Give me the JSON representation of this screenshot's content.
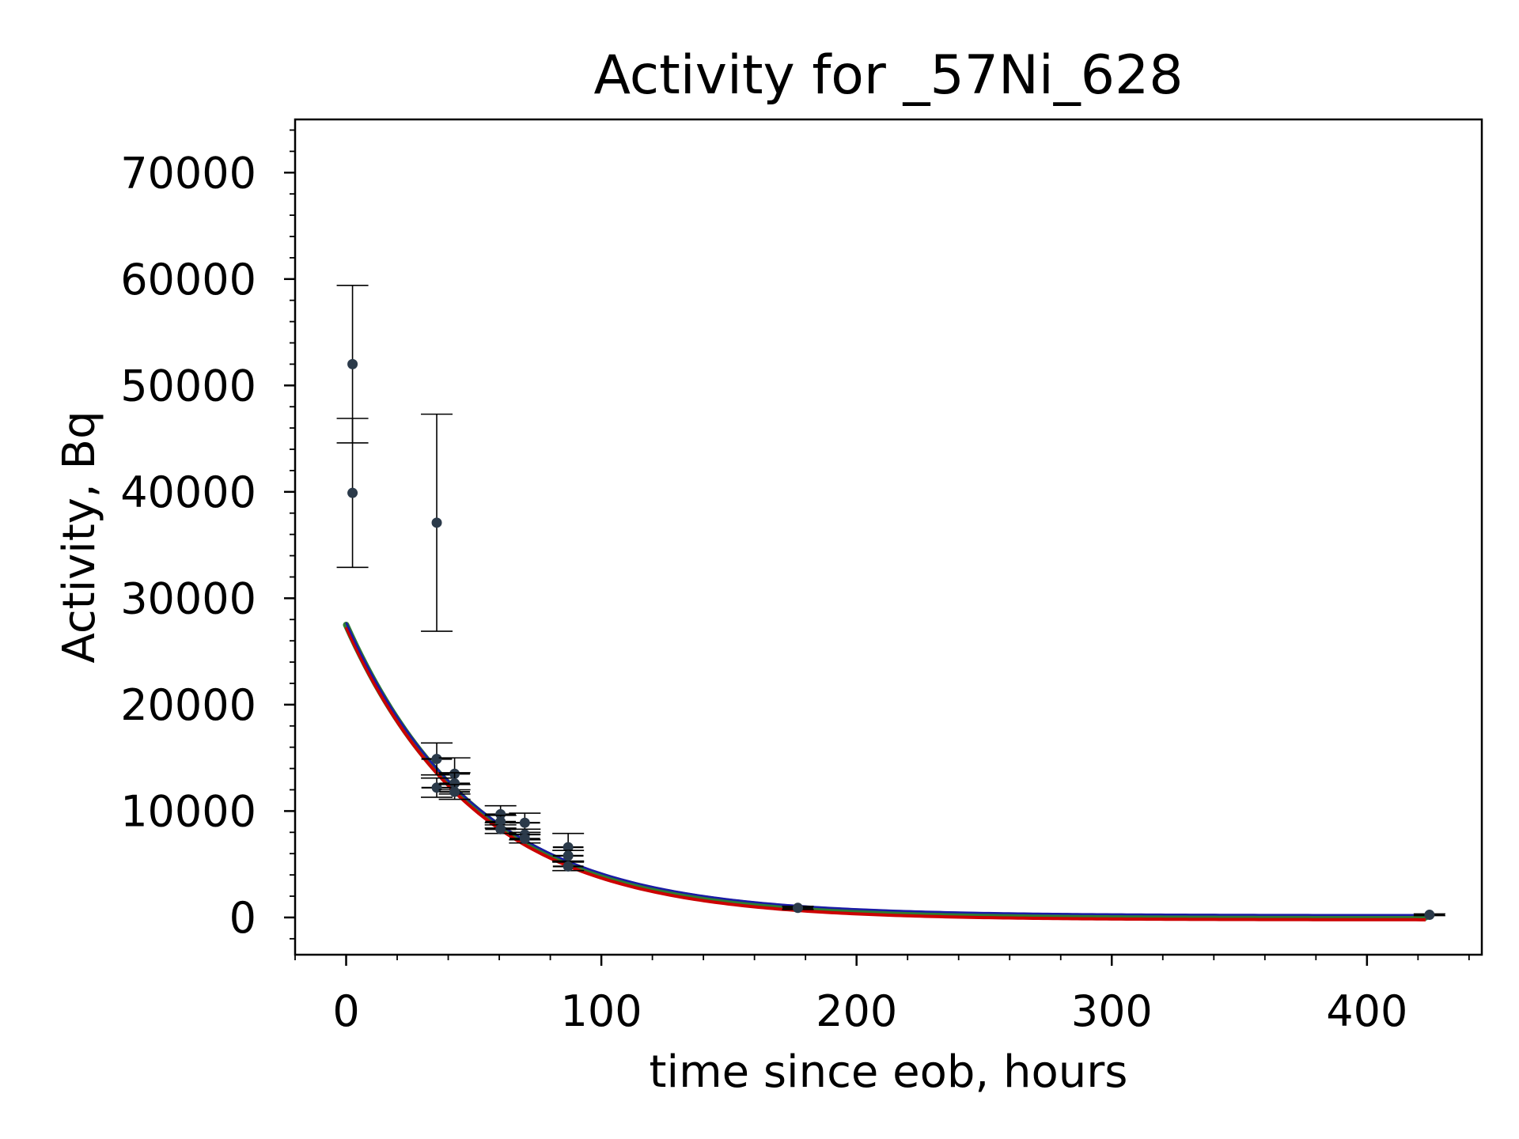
{
  "chart_data": {
    "type": "scatter",
    "title": "Activity for _57Ni_628",
    "xlabel": "time since eob, hours",
    "ylabel": "Activity, Bq",
    "xlim": [
      -20,
      445
    ],
    "ylim": [
      -3500,
      75000
    ],
    "xticks": [
      0,
      100,
      200,
      300,
      400
    ],
    "yticks": [
      0,
      10000,
      20000,
      30000,
      40000,
      50000,
      60000,
      70000
    ],
    "xtick_labels": [
      "0",
      "100",
      "200",
      "300",
      "400"
    ],
    "ytick_labels": [
      "0",
      "10000",
      "20000",
      "30000",
      "40000",
      "50000",
      "60000",
      "70000"
    ],
    "grid": false,
    "legend": "none",
    "colors": {
      "points": "#2b3a4a",
      "errorbars": "#000000",
      "fit_primary": "#cc0000",
      "fit_secondary": "#1a1aa6",
      "fit_band": "#2e7d32"
    },
    "points": [
      {
        "x": 2.5,
        "y": 52000,
        "yerr": 7400,
        "xerr": 0
      },
      {
        "x": 2.5,
        "y": 39900,
        "yerr": 7000,
        "xerr": 0
      },
      {
        "x": 35.5,
        "y": 37100,
        "yerr": 10200,
        "xerr": 0
      },
      {
        "x": 35.5,
        "y": 14900,
        "yerr": 1500,
        "xerr": 6
      },
      {
        "x": 35.5,
        "y": 12200,
        "yerr": 900,
        "xerr": 6
      },
      {
        "x": 42.5,
        "y": 13500,
        "yerr": 1500,
        "xerr": 6
      },
      {
        "x": 42.5,
        "y": 12600,
        "yerr": 1000,
        "xerr": 6
      },
      {
        "x": 42.5,
        "y": 11800,
        "yerr": 700,
        "xerr": 6
      },
      {
        "x": 60.5,
        "y": 9700,
        "yerr": 800,
        "xerr": 6
      },
      {
        "x": 60.5,
        "y": 9000,
        "yerr": 600,
        "xerr": 6
      },
      {
        "x": 60.5,
        "y": 8300,
        "yerr": 400,
        "xerr": 6
      },
      {
        "x": 70,
        "y": 8900,
        "yerr": 900,
        "xerr": 6
      },
      {
        "x": 70,
        "y": 7800,
        "yerr": 500,
        "xerr": 6
      },
      {
        "x": 70,
        "y": 7400,
        "yerr": 400,
        "xerr": 6
      },
      {
        "x": 87,
        "y": 6600,
        "yerr": 1300,
        "xerr": 6
      },
      {
        "x": 87,
        "y": 5800,
        "yerr": 500,
        "xerr": 6
      },
      {
        "x": 87,
        "y": 4800,
        "yerr": 400,
        "xerr": 6
      },
      {
        "x": 177,
        "y": 900,
        "yerr": 150,
        "xerr": 6
      },
      {
        "x": 424.5,
        "y": 250,
        "yerr": 80,
        "xerr": 6
      }
    ],
    "fit": {
      "model": "exponential",
      "A0": 27500,
      "half_life_hours": 35.6,
      "x_range": [
        0,
        423
      ]
    }
  }
}
